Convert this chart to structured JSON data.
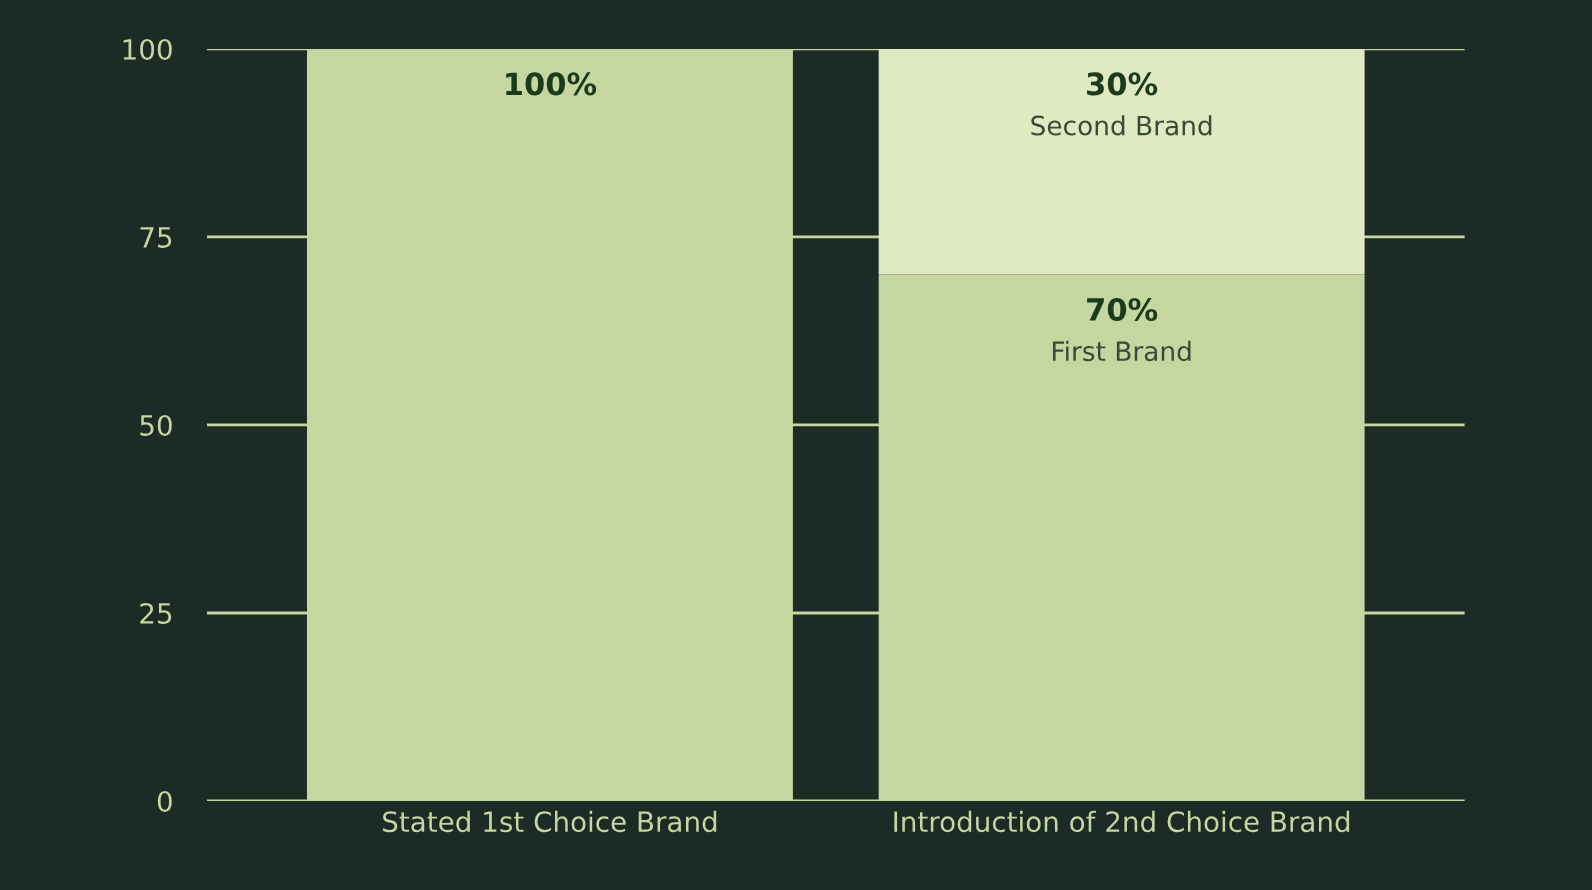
{
  "chart_data": {
    "type": "bar",
    "stacked": true,
    "categories": [
      "Stated 1st Choice Brand",
      "Introduction of 2nd Choice Brand"
    ],
    "series": [
      {
        "color": "#c5d6a0",
        "values": [
          100,
          null
        ],
        "value_labels": [
          "100%",
          null
        ]
      },
      {
        "name": "First Brand",
        "color": "#c5d6a0",
        "values": [
          null,
          70
        ],
        "value_labels": [
          null,
          "70%"
        ]
      },
      {
        "name": "Second Brand",
        "color": "#dfeac2",
        "values": [
          null,
          30
        ],
        "value_labels": [
          null,
          "30%"
        ]
      }
    ],
    "ylim": [
      0,
      100
    ],
    "yticks": [
      0,
      25,
      50,
      75,
      100
    ],
    "grid": "y",
    "legend": false
  }
}
